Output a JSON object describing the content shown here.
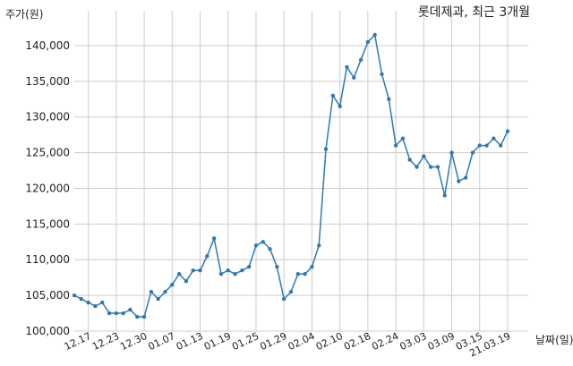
{
  "chart_data": {
    "type": "line",
    "title": "롯데제과, 최근 3개월",
    "ylabel": "주가(원)",
    "xlabel": "날짜(일)",
    "ylim": [
      100000,
      145000
    ],
    "y_ticks": [
      "100,000",
      "105,000",
      "110,000",
      "115,000",
      "120,000",
      "125,000",
      "130,000",
      "135,000",
      "140,000"
    ],
    "y_tick_values": [
      100000,
      105000,
      110000,
      115000,
      120000,
      125000,
      130000,
      135000,
      140000
    ],
    "x_tick_labels": [
      "12.17",
      "12.23",
      "12.30",
      "01.07",
      "01.13",
      "01.19",
      "01.25",
      "01.29",
      "02.04",
      "02.10",
      "02.18",
      "02.24",
      "03.03",
      "03.09",
      "03.15",
      "21.03.19"
    ],
    "x_tick_index": [
      2,
      6,
      10,
      14,
      18,
      22,
      26,
      30,
      34,
      38,
      42,
      46,
      50,
      54,
      58,
      62
    ],
    "grid": true,
    "line_color": "#2f78b4",
    "series": [
      {
        "values": [
          105000,
          104500,
          104000,
          103500,
          104000,
          102500,
          102500,
          102500,
          103000,
          102000,
          102000,
          105500,
          104500,
          105500,
          106500,
          108000,
          107000,
          108500,
          108500,
          110500,
          113000,
          108000,
          108500,
          108000,
          108500,
          109000,
          112000,
          112500,
          111500,
          109000,
          104500,
          105500,
          108000,
          108000,
          109000,
          112000,
          125500,
          133000,
          131500,
          137000,
          135500,
          138000,
          140500,
          141500,
          136000,
          132500,
          126000,
          127000,
          124000,
          123000,
          124500,
          123000,
          123000,
          119000,
          125000,
          121000,
          121500,
          125000,
          126000,
          126000,
          127000,
          126000,
          128000
        ]
      }
    ]
  }
}
